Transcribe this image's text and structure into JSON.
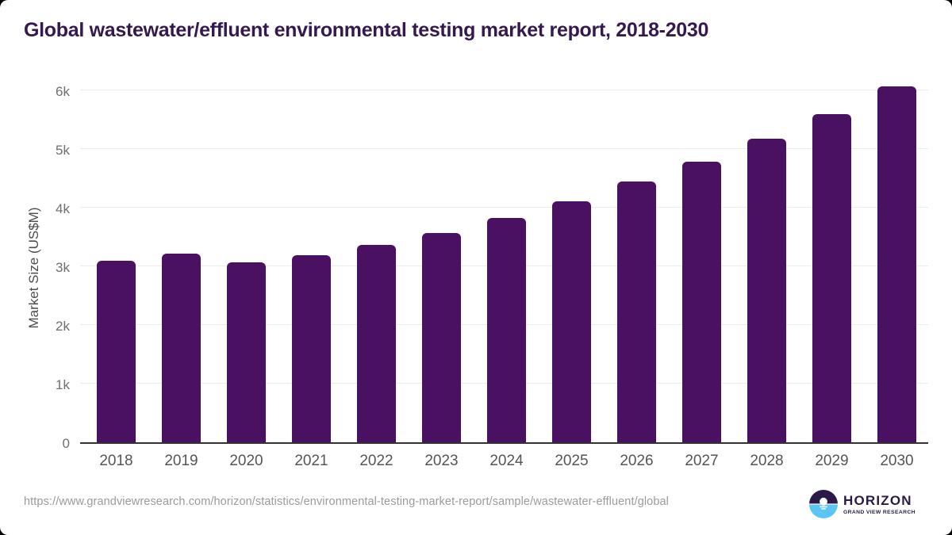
{
  "footer": {
    "source_url": "https://www.grandviewresearch.com/horizon/statistics/environmental-testing-market-report/sample/wastewater-effluent/global",
    "logo": {
      "name": "HORIZON",
      "subtitle": "GRAND VIEW RESEARCH",
      "icon": "horizon-sun-circle-icon"
    }
  },
  "colors": {
    "bar": "#4A1162",
    "title_text": "#35194E",
    "logo_navy": "#2B1A47",
    "logo_blue": "#59C6F3",
    "gridline": "#ECECEC",
    "axis_line": "#333333",
    "ytick_text": "#6E6E6E",
    "xtick_text": "#555555",
    "yaxis_title_text": "#4D4D4D",
    "url_text": "#9B9B9B",
    "background": "#FFFFFF"
  },
  "chart_data": {
    "type": "bar",
    "title": "Global wastewater/effluent environmental testing market report, 2018-2030",
    "xlabel": "",
    "ylabel": "Market Size (US$M)",
    "unit": "US$M",
    "categories": [
      "2018",
      "2019",
      "2020",
      "2021",
      "2022",
      "2023",
      "2024",
      "2025",
      "2026",
      "2027",
      "2028",
      "2029",
      "2030"
    ],
    "values": [
      3100,
      3220,
      3070,
      3190,
      3360,
      3570,
      3825,
      4110,
      4440,
      4780,
      5180,
      5600,
      6070
    ],
    "ylim": [
      0,
      6000
    ],
    "yticks": [
      "0",
      "1k",
      "2k",
      "3k",
      "4k",
      "5k",
      "6k"
    ],
    "grid": true,
    "legend_position": "none",
    "bar_style": "rounded-top"
  }
}
